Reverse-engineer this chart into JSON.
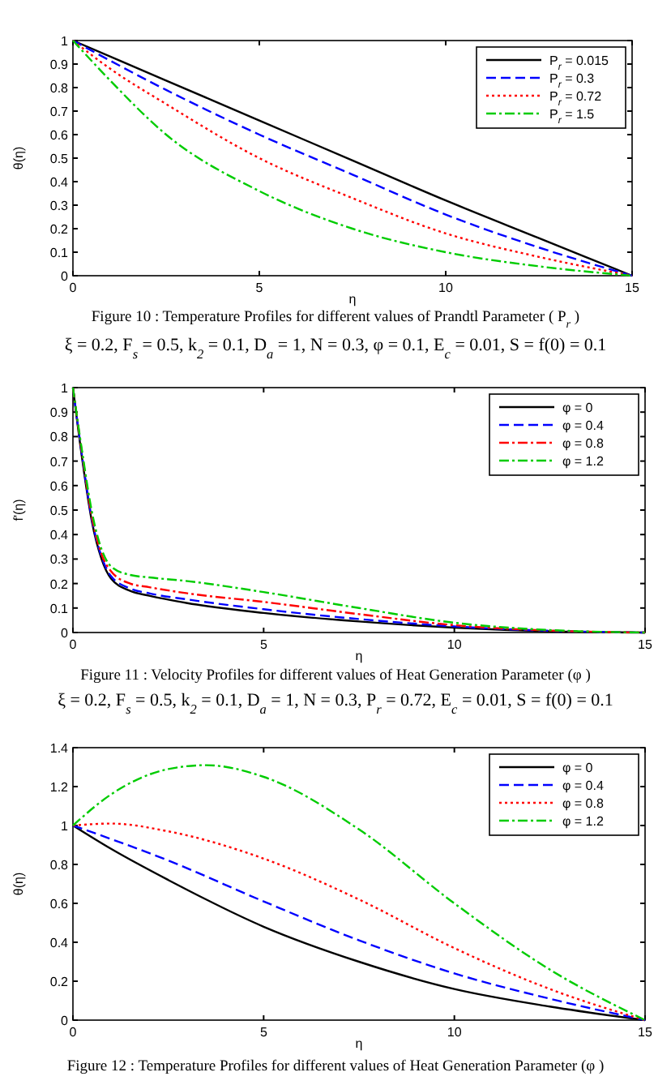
{
  "chart_data": [
    {
      "type": "line",
      "xlabel": "η",
      "ylabel": "θ(η)",
      "annotations": [
        "Figure 10 : Temperature Profiles for different values of Prandtl Parameter ( P$_{r}$ )",
        "ξ = 0.2, F$_{s}$ = 0.5, k$_{2}$ = 0.1, D$_{a}$ = 1, N = 0.3, φ = 0.1, E$_{c}$ = 0.01, S = f(0) = 0.1"
      ],
      "xlim": [
        0,
        15
      ],
      "xticks": [
        0,
        5,
        10,
        15
      ],
      "ylim": [
        0,
        1
      ],
      "yticks": [
        0,
        0.1,
        0.2,
        0.3,
        0.4,
        0.5,
        0.6,
        0.7,
        0.8,
        0.9,
        1
      ],
      "grid": false,
      "legend": "top right",
      "series": [
        {
          "name": "P$_{r}$ = 0.015",
          "color": "#000000",
          "line_style": "solid",
          "x": [
            0,
            2.5,
            5,
            7.5,
            10,
            12.5,
            15
          ],
          "values": [
            1,
            0.83,
            0.66,
            0.49,
            0.32,
            0.16,
            0
          ]
        },
        {
          "name": "P$_{r}$ = 0.3",
          "color": "#0000ff",
          "line_style": "dashed",
          "x": [
            0,
            2.5,
            5,
            7.5,
            10,
            12.5,
            15
          ],
          "values": [
            1,
            0.79,
            0.6,
            0.43,
            0.26,
            0.12,
            0
          ]
        },
        {
          "name": "P$_{r}$ = 0.72",
          "color": "#ff0000",
          "line_style": "dotted",
          "x": [
            0,
            1,
            2.5,
            5,
            7.5,
            10,
            12.5,
            15
          ],
          "values": [
            1,
            0.88,
            0.73,
            0.5,
            0.33,
            0.18,
            0.08,
            0
          ]
        },
        {
          "name": "P$_{r}$ = 1.5",
          "color": "#00cc00",
          "line_style": "dashdot",
          "x": [
            0,
            1,
            2.5,
            5,
            7.5,
            10,
            12.5,
            15
          ],
          "values": [
            1,
            0.83,
            0.6,
            0.36,
            0.2,
            0.1,
            0.04,
            0
          ]
        }
      ]
    },
    {
      "type": "line",
      "xlabel": "η",
      "ylabel": "f'(η)",
      "annotations": [
        "Figure 11 : Velocity Profiles for different values of Heat Generation Parameter (φ )",
        "ξ = 0.2, F$_{s}$ = 0.5, k$_{2}$ = 0.1, D$_{a}$ = 1, N = 0.3, P$_{r}$ = 0.72, E$_{c}$ = 0.01, S = f(0) = 0.1"
      ],
      "xlim": [
        0,
        15
      ],
      "xticks": [
        0,
        5,
        10,
        15
      ],
      "ylim": [
        0,
        1
      ],
      "yticks": [
        0,
        0.1,
        0.2,
        0.3,
        0.4,
        0.5,
        0.6,
        0.7,
        0.8,
        0.9,
        1
      ],
      "grid": false,
      "legend": "top right",
      "series": [
        {
          "name": "φ = 0",
          "color": "#000000",
          "line_style": "solid",
          "x": [
            0,
            0.25,
            0.5,
            0.75,
            1,
            1.5,
            2,
            3,
            5,
            7.5,
            10,
            12.5,
            15
          ],
          "values": [
            1,
            0.7,
            0.45,
            0.3,
            0.22,
            0.17,
            0.15,
            0.12,
            0.08,
            0.045,
            0.02,
            0.005,
            0
          ]
        },
        {
          "name": "φ = 0.4",
          "color": "#0000ff",
          "line_style": "dashed",
          "x": [
            0,
            0.25,
            0.5,
            0.75,
            1,
            1.5,
            2,
            3,
            5,
            7.5,
            10,
            12.5,
            15
          ],
          "values": [
            1,
            0.71,
            0.46,
            0.31,
            0.23,
            0.18,
            0.16,
            0.135,
            0.095,
            0.055,
            0.025,
            0.007,
            0
          ]
        },
        {
          "name": "φ = 0.8",
          "color": "#ff0000",
          "line_style": "dashdot",
          "x": [
            0,
            0.25,
            0.5,
            0.75,
            1,
            1.5,
            2,
            3,
            5,
            7.5,
            10,
            12.5,
            15
          ],
          "values": [
            1,
            0.72,
            0.47,
            0.32,
            0.25,
            0.2,
            0.185,
            0.16,
            0.125,
            0.075,
            0.03,
            0.008,
            0
          ]
        },
        {
          "name": "φ = 1.2",
          "color": "#00cc00",
          "line_style": "dashdot",
          "x": [
            0,
            0.25,
            0.5,
            0.75,
            1,
            1.5,
            2,
            3,
            5,
            7.5,
            10,
            12.5,
            15
          ],
          "values": [
            1,
            0.73,
            0.49,
            0.34,
            0.27,
            0.235,
            0.225,
            0.21,
            0.165,
            0.1,
            0.04,
            0.01,
            0
          ]
        }
      ]
    },
    {
      "type": "line",
      "xlabel": "η",
      "ylabel": "θ(η)",
      "annotations": [
        "Figure 12 : Temperature Profiles for different values of Heat Generation Parameter (φ )"
      ],
      "xlim": [
        0,
        15
      ],
      "xticks": [
        0,
        5,
        10,
        15
      ],
      "ylim": [
        0,
        1.4
      ],
      "yticks": [
        0,
        0.2,
        0.4,
        0.6,
        0.8,
        1,
        1.2,
        1.4
      ],
      "grid": false,
      "legend": "top right",
      "series": [
        {
          "name": "φ = 0",
          "color": "#000000",
          "line_style": "solid",
          "x": [
            0,
            1,
            2.5,
            5,
            7.5,
            10,
            12.5,
            15
          ],
          "values": [
            1,
            0.88,
            0.72,
            0.48,
            0.3,
            0.16,
            0.07,
            0
          ]
        },
        {
          "name": "φ = 0.4",
          "color": "#0000ff",
          "line_style": "dashed",
          "x": [
            0,
            2.5,
            5,
            7.5,
            10,
            12.5,
            15
          ],
          "values": [
            1,
            0.82,
            0.61,
            0.41,
            0.24,
            0.11,
            0
          ]
        },
        {
          "name": "φ = 0.8",
          "color": "#ff0000",
          "line_style": "dotted",
          "x": [
            0,
            1,
            2.5,
            5,
            7.5,
            10,
            12.5,
            15
          ],
          "values": [
            1,
            1.01,
            0.97,
            0.83,
            0.62,
            0.37,
            0.16,
            0
          ]
        },
        {
          "name": "φ = 1.2",
          "color": "#00cc00",
          "line_style": "dashdot",
          "x": [
            0,
            1,
            2.5,
            3.5,
            5,
            7.5,
            10,
            12.5,
            15
          ],
          "values": [
            1,
            1.16,
            1.29,
            1.31,
            1.25,
            0.98,
            0.6,
            0.26,
            0
          ]
        }
      ]
    }
  ]
}
